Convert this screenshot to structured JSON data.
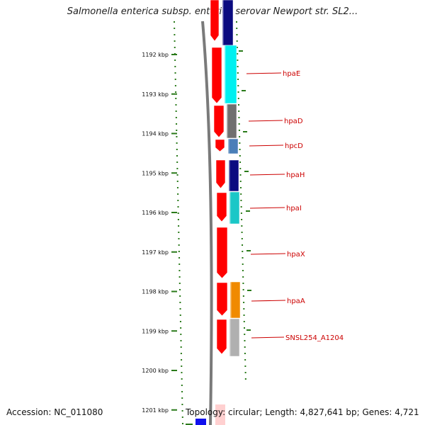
{
  "title": "Salmonella enterica subsp. enterica serovar Newport str. SL2...",
  "accession": "Accession: NC_011080",
  "topology": "Topology: circular; Length: 4,827,641 bp; Genes: 4,721",
  "scale_labels": [
    "1192 kbp",
    "1193 kbp",
    "1194 kbp",
    "1195 kbp",
    "1196 kbp",
    "1197 kbp",
    "1198 kbp",
    "1199 kbp",
    "1200 kbp",
    "1201 kbp"
  ],
  "genes": [
    {
      "label": "",
      "color": "#0b0b80"
    },
    {
      "label": "hpaE",
      "color": "#00f0f0"
    },
    {
      "label": "hpaD",
      "color": "#707070"
    },
    {
      "label": "hpcD",
      "color": "#4a7fb8"
    },
    {
      "label": "hpaH",
      "color": "#0b0b80"
    },
    {
      "label": "hpaI",
      "color": "#1ac7c7"
    },
    {
      "label": "hpaX",
      "color": ""
    },
    {
      "label": "hpaA",
      "color": "#f08a00"
    },
    {
      "label": "SNSL254_A1204",
      "color": "#b0b0b0"
    }
  ],
  "colors": {
    "cds": "#ff0000",
    "label": "#cc0000",
    "scale": "#2a7a1a",
    "backbone": "#7a7a7a"
  }
}
